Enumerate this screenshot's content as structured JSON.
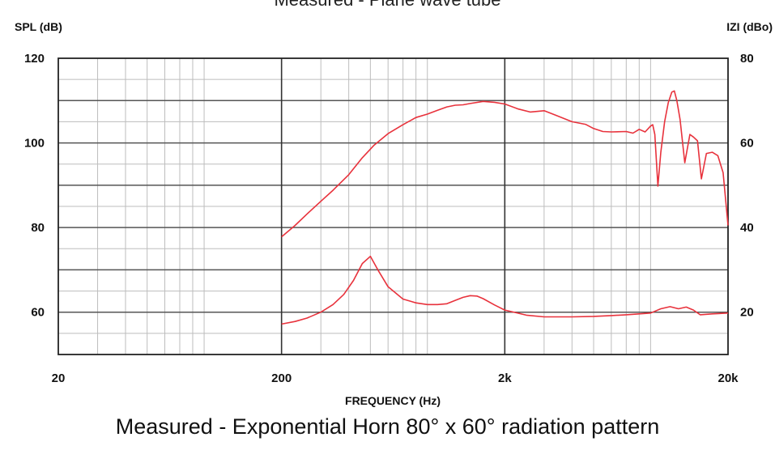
{
  "chart_data": {
    "type": "line",
    "title": "Measured - Plane wave tube",
    "subtitle": "Measured - Exponential Horn 80° x 60° radiation pattern",
    "xlabel": "FREQUENCY (Hz)",
    "ylabel_left": "SPL (dB)",
    "ylabel_right": "IZI (dBo)",
    "x_scale": "log",
    "xlim": [
      20,
      20000
    ],
    "x_ticks": [
      {
        "value": 20,
        "label": "20"
      },
      {
        "value": 200,
        "label": "200"
      },
      {
        "value": 2000,
        "label": "2k"
      },
      {
        "value": 20000,
        "label": "20k"
      }
    ],
    "ylim_left": [
      50,
      120
    ],
    "yticks_left": [
      {
        "value": 120,
        "label": "120"
      },
      {
        "value": 100,
        "label": "100"
      },
      {
        "value": 80,
        "label": "80"
      },
      {
        "value": 60,
        "label": "60"
      }
    ],
    "ylim_right": [
      10,
      80
    ],
    "yticks_right": [
      {
        "value": 80,
        "label": "80"
      },
      {
        "value": 60,
        "label": "60"
      },
      {
        "value": 40,
        "label": "40"
      },
      {
        "value": 20,
        "label": "20"
      }
    ],
    "grid": true,
    "line_color": "#e8323c",
    "series": [
      {
        "axis": "left",
        "x": [
          200,
          230,
          260,
          300,
          340,
          400,
          460,
          520,
          600,
          700,
          800,
          900,
          1000,
          1100,
          1200,
          1300,
          1400,
          1600,
          1800,
          2000,
          2300,
          2600,
          3000,
          3400,
          4000,
          4600,
          5000,
          5500,
          6000,
          7000,
          7500,
          8000,
          8500,
          9000,
          9200,
          9400,
          9700,
          10000,
          10400,
          10800,
          11200,
          11500,
          11800,
          12200,
          12800,
          13500,
          14000,
          14600,
          15200,
          16000,
          17000,
          18000,
          19000,
          20000
        ],
        "y": [
          77.8,
          80.5,
          83.2,
          86.2,
          88.8,
          92.5,
          96.5,
          99.5,
          102.2,
          104.3,
          106.0,
          106.8,
          107.7,
          108.5,
          108.9,
          109.0,
          109.3,
          109.8,
          109.6,
          109.2,
          108.0,
          107.3,
          107.6,
          106.5,
          105.0,
          104.4,
          103.4,
          102.7,
          102.6,
          102.7,
          102.3,
          103.2,
          102.6,
          104.0,
          104.3,
          102.0,
          89.8,
          97.8,
          105.0,
          109.5,
          112.0,
          112.3,
          110.0,
          105.5,
          95.3,
          102.0,
          101.4,
          100.5,
          91.5,
          97.5,
          97.8,
          97.0,
          93.0,
          80.5
        ]
      },
      {
        "axis": "right",
        "x": [
          200,
          230,
          260,
          300,
          340,
          380,
          420,
          460,
          500,
          540,
          600,
          700,
          800,
          900,
          1000,
          1100,
          1200,
          1300,
          1400,
          1500,
          1600,
          1800,
          2000,
          2500,
          3000,
          4000,
          5000,
          6000,
          7000,
          8000,
          9000,
          10000,
          11000,
          12000,
          13000,
          14000,
          15000,
          17000,
          20000
        ],
        "y": [
          17.2,
          17.8,
          18.6,
          20.0,
          21.8,
          24.2,
          27.5,
          31.5,
          33.2,
          30.0,
          26.0,
          23.1,
          22.2,
          21.8,
          21.8,
          22.0,
          22.8,
          23.5,
          23.9,
          23.8,
          23.2,
          21.7,
          20.5,
          19.3,
          18.9,
          18.9,
          19.0,
          19.2,
          19.4,
          19.6,
          19.8,
          20.8,
          21.3,
          20.8,
          21.2,
          20.5,
          19.4,
          19.6,
          19.8
        ]
      }
    ]
  }
}
